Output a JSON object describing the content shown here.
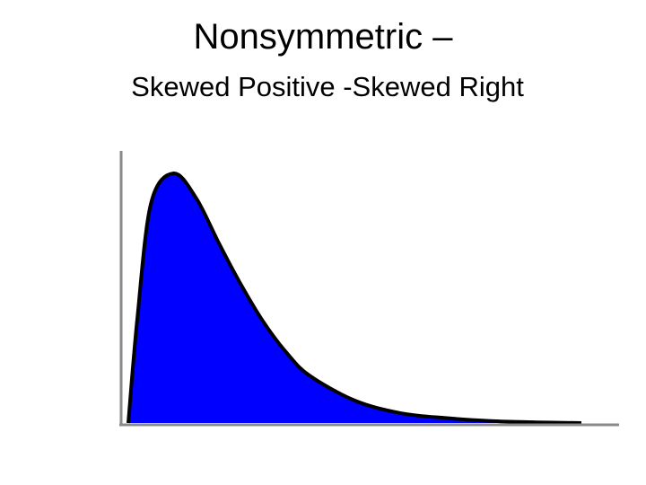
{
  "title": "Nonsymmetric –",
  "subtitle": "Skewed Positive -Skewed Right",
  "chart_data": {
    "type": "area",
    "fill_color": "#0000ff",
    "outline_color": "#000000",
    "grid": false,
    "shape": "right-skewed density curve",
    "x": [
      0,
      0.02,
      0.05,
      0.1,
      0.15,
      0.2,
      0.25,
      0.3,
      0.35,
      0.4,
      0.5,
      0.6,
      0.7,
      0.8,
      0.9,
      1.0
    ],
    "y": [
      0,
      0.42,
      0.88,
      1.0,
      0.9,
      0.72,
      0.55,
      0.4,
      0.28,
      0.19,
      0.09,
      0.04,
      0.02,
      0.008,
      0.003,
      0.0
    ]
  }
}
